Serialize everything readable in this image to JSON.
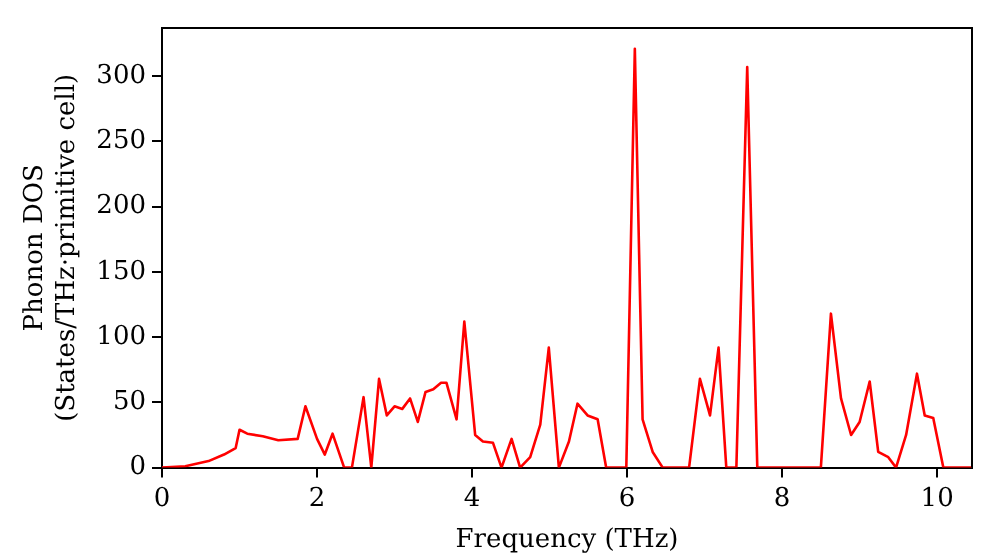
{
  "chart_data": {
    "type": "line",
    "xlabel": "Frequency (THz)",
    "ylabel": "Phonon DOS\n(States/THz·primitive cell)",
    "x": [
      0,
      0.3,
      0.6,
      0.8,
      0.95,
      1.0,
      1.1,
      1.3,
      1.5,
      1.75,
      1.85,
      2.0,
      2.1,
      2.2,
      2.35,
      2.45,
      2.6,
      2.7,
      2.8,
      2.9,
      3.0,
      3.1,
      3.2,
      3.3,
      3.4,
      3.5,
      3.6,
      3.67,
      3.8,
      3.9,
      4.04,
      4.14,
      4.27,
      4.38,
      4.51,
      4.62,
      4.75,
      4.88,
      4.99,
      5.12,
      5.25,
      5.36,
      5.49,
      5.62,
      5.73,
      5.99,
      6.1,
      6.2,
      6.33,
      6.46,
      6.8,
      6.94,
      7.07,
      7.18,
      7.28,
      7.41,
      7.55,
      7.68,
      8.5,
      8.63,
      8.76,
      8.89,
      9.0,
      9.13,
      9.24,
      9.37,
      9.47,
      9.6,
      9.74,
      9.84,
      9.95,
      10.08,
      10.45
    ],
    "series": [
      {
        "color": "#ff0000",
        "values": [
          0,
          1,
          5,
          10,
          15,
          29,
          26,
          24,
          21,
          22,
          47,
          22,
          10,
          26,
          0,
          0,
          54,
          0,
          68,
          40,
          47,
          45,
          53,
          35,
          58,
          60,
          65,
          65,
          37,
          112,
          25,
          20,
          19,
          0,
          22,
          0,
          8,
          33,
          92,
          0,
          20,
          49,
          40,
          37,
          0,
          0,
          321,
          37,
          12,
          0,
          0,
          68,
          40,
          92,
          0,
          0,
          307,
          0,
          0,
          118,
          53,
          25,
          35,
          66,
          12,
          8,
          0,
          25,
          72,
          40,
          38,
          0,
          0
        ]
      }
    ],
    "xlim": [
      0,
      10.45
    ],
    "ylim": [
      0,
      337
    ],
    "xticks": [
      0,
      2,
      4,
      6,
      8,
      10
    ],
    "yticks": [
      0,
      50,
      100,
      150,
      200,
      250,
      300
    ],
    "grid": false,
    "legend": false,
    "marker": "none",
    "line_style": "solid"
  }
}
